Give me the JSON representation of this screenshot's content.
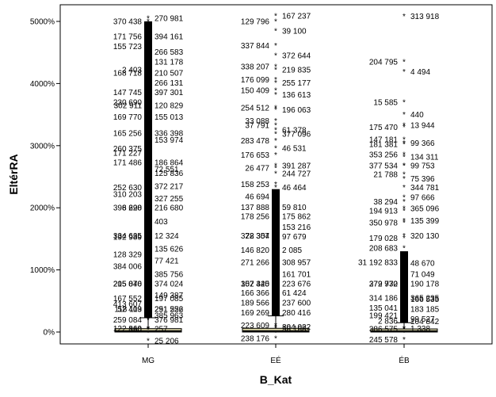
{
  "chart_data": {
    "type": "boxplot",
    "xlabel": "B_Kat",
    "ylabel": "EltérRA",
    "categories": [
      "MG",
      "EÉ",
      "ÉB"
    ],
    "y_unit": "%",
    "ylim": [
      -40,
      5150
    ],
    "yticks": [
      {
        "value": 0,
        "label": "0%"
      },
      {
        "value": 1000,
        "label": "1000%"
      },
      {
        "value": 2000,
        "label": "2000%"
      },
      {
        "value": 3000,
        "label": "3000%"
      },
      {
        "value": 4000,
        "label": "4000%"
      },
      {
        "value": 5000,
        "label": "5000%"
      }
    ],
    "grid": false,
    "colors": {
      "box_fill": "#d8d3a5",
      "dense": "#000000",
      "frame": "#000000"
    },
    "groups": [
      {
        "category": "MG",
        "box": {
          "q1": 0,
          "median": 15,
          "q3": 55,
          "whisker_low": -10,
          "whisker_high": 230
        },
        "dense_range": [
          230,
          5000
        ],
        "labeled_outliers": [
          {
            "label": "270 981",
            "value": 5050
          },
          {
            "label": "370 438",
            "value": 5000
          },
          {
            "label": "394 161",
            "value": 4760
          },
          {
            "label": "171 756",
            "value": 4760
          },
          {
            "label": "266 583",
            "value": 4510
          },
          {
            "label": "155 723",
            "value": 4600
          },
          {
            "label": "131 178",
            "value": 4350
          },
          {
            "label": "2 403",
            "value": 4220
          },
          {
            "label": "210 507",
            "value": 4170
          },
          {
            "label": "168 718",
            "value": 4170
          },
          {
            "label": "266 131",
            "value": 4010
          },
          {
            "label": "147 745",
            "value": 3860
          },
          {
            "label": "397 301",
            "value": 3860
          },
          {
            "label": "302 911",
            "value": 3650
          },
          {
            "label": "120 829",
            "value": 3650
          },
          {
            "label": "230 690",
            "value": 3700
          },
          {
            "label": "155 013",
            "value": 3460
          },
          {
            "label": "169 770",
            "value": 3460
          },
          {
            "label": "336 398",
            "value": 3200
          },
          {
            "label": "165 256",
            "value": 3200
          },
          {
            "label": "153 974",
            "value": 3090
          },
          {
            "label": "260 375",
            "value": 2950
          },
          {
            "label": "186 864",
            "value": 2730
          },
          {
            "label": "171 227",
            "value": 2880
          },
          {
            "label": "72 551",
            "value": 2620
          },
          {
            "label": "171 486",
            "value": 2730
          },
          {
            "label": "125 836",
            "value": 2560
          },
          {
            "label": "252 630",
            "value": 2330
          },
          {
            "label": "372 217",
            "value": 2350
          },
          {
            "label": "310 203",
            "value": 2220
          },
          {
            "label": "327 255",
            "value": 2150
          },
          {
            "label": "8 690",
            "value": 2000
          },
          {
            "label": "216 680",
            "value": 2000
          },
          {
            "label": "396 228",
            "value": 2000
          },
          {
            "label": "403",
            "value": 1780
          },
          {
            "label": "334 635",
            "value": 1550
          },
          {
            "label": "12 324",
            "value": 1550
          },
          {
            "label": "192 989",
            "value": 1530
          },
          {
            "label": "135 626",
            "value": 1340
          },
          {
            "label": "128 329",
            "value": 1250
          },
          {
            "label": "77 421",
            "value": 1150
          },
          {
            "label": "384 006",
            "value": 1060
          },
          {
            "label": "385 756",
            "value": 930
          },
          {
            "label": "215 076",
            "value": 780
          },
          {
            "label": "374 024",
            "value": 780
          },
          {
            "label": "205 840",
            "value": 780
          },
          {
            "label": "149 387",
            "value": 590
          },
          {
            "label": "167 552",
            "value": 540
          },
          {
            "label": "197 085",
            "value": 540
          },
          {
            "label": "413 607",
            "value": 450
          },
          {
            "label": "251 256",
            "value": 370
          },
          {
            "label": "118 119",
            "value": 370
          },
          {
            "label": "291 522",
            "value": 370
          },
          {
            "label": "52 403",
            "value": 370
          },
          {
            "label": "385 963",
            "value": 270
          },
          {
            "label": "259 084",
            "value": 200
          },
          {
            "label": "376 981",
            "value": 200
          },
          {
            "label": "122 860",
            "value": 60
          },
          {
            "label": "257",
            "value": 50
          },
          {
            "label": "380",
            "value": 40
          },
          {
            "label": "25 206",
            "value": -140
          }
        ]
      },
      {
        "category": "EÉ",
        "box": {
          "q1": 0,
          "median": 15,
          "q3": 60,
          "whisker_low": -10,
          "whisker_high": 260
        },
        "dense_range": [
          260,
          2300
        ],
        "labeled_outliers": [
          {
            "label": "167 237",
            "value": 5090
          },
          {
            "label": "129 796",
            "value": 5000
          },
          {
            "label": "39 100",
            "value": 4850
          },
          {
            "label": "337 844",
            "value": 4610
          },
          {
            "label": "372 644",
            "value": 4450
          },
          {
            "label": "338 207",
            "value": 4270
          },
          {
            "label": "219 835",
            "value": 4220
          },
          {
            "label": "176 099",
            "value": 4060
          },
          {
            "label": "255 177",
            "value": 4010
          },
          {
            "label": "150 409",
            "value": 3890
          },
          {
            "label": "136 613",
            "value": 3820
          },
          {
            "label": "254 512",
            "value": 3610
          },
          {
            "label": "196 063",
            "value": 3580
          },
          {
            "label": "33 088",
            "value": 3400
          },
          {
            "label": "61 378",
            "value": 3250
          },
          {
            "label": "37 791",
            "value": 3330
          },
          {
            "label": "377 096",
            "value": 3190
          },
          {
            "label": "283 478",
            "value": 3080
          },
          {
            "label": "46 531",
            "value": 2960
          },
          {
            "label": "176 653",
            "value": 2850
          },
          {
            "label": "391 287",
            "value": 2680
          },
          {
            "label": "26 477",
            "value": 2640
          },
          {
            "label": "244 727",
            "value": 2550
          },
          {
            "label": "158 253",
            "value": 2380
          },
          {
            "label": "46 464",
            "value": 2330
          },
          {
            "label": "46 694",
            "value": 2180
          },
          {
            "label": "59 810",
            "value": 2010
          },
          {
            "label": "137 888",
            "value": 2010
          },
          {
            "label": "175 862",
            "value": 1860
          },
          {
            "label": "178 256",
            "value": 1860
          },
          {
            "label": "153 216",
            "value": 1690
          },
          {
            "label": "78 354",
            "value": 1550
          },
          {
            "label": "97 679",
            "value": 1540
          },
          {
            "label": "322 307",
            "value": 1550
          },
          {
            "label": "2 085",
            "value": 1320
          },
          {
            "label": "146 820",
            "value": 1320
          },
          {
            "label": "308 957",
            "value": 1120
          },
          {
            "label": "271 266",
            "value": 1120
          },
          {
            "label": "161 701",
            "value": 930
          },
          {
            "label": "307 340",
            "value": 780
          },
          {
            "label": "223 676",
            "value": 780
          },
          {
            "label": "152 425",
            "value": 780
          },
          {
            "label": "61 424",
            "value": 630
          },
          {
            "label": "166 366",
            "value": 630
          },
          {
            "label": "237 600",
            "value": 470
          },
          {
            "label": "189 566",
            "value": 470
          },
          {
            "label": "280 416",
            "value": 310
          },
          {
            "label": "169 269",
            "value": 310
          },
          {
            "label": "58 168",
            "value": 60
          },
          {
            "label": "223 609",
            "value": 110
          },
          {
            "label": "304 022",
            "value": 80
          },
          {
            "label": "238 176",
            "value": -100
          }
        ]
      },
      {
        "category": "ÉB",
        "box": {
          "q1": 0,
          "median": 12,
          "q3": 50,
          "whisker_low": -10,
          "whisker_high": 150
        },
        "dense_range": [
          150,
          1300
        ],
        "labeled_outliers": [
          {
            "label": "313 918",
            "value": 5080
          },
          {
            "label": "204 795",
            "value": 4350
          },
          {
            "label": "4 494",
            "value": 4190
          },
          {
            "label": "15 585",
            "value": 3700
          },
          {
            "label": "440",
            "value": 3500
          },
          {
            "label": "175 470",
            "value": 3300
          },
          {
            "label": "13 944",
            "value": 3330
          },
          {
            "label": "147 181",
            "value": 3100
          },
          {
            "label": "99 366",
            "value": 3040
          },
          {
            "label": "181 381",
            "value": 3020
          },
          {
            "label": "134 311",
            "value": 2820
          },
          {
            "label": "353 256",
            "value": 2860
          },
          {
            "label": "99 753",
            "value": 2680
          },
          {
            "label": "377 534",
            "value": 2680
          },
          {
            "label": "75 396",
            "value": 2470
          },
          {
            "label": "21 788",
            "value": 2540
          },
          {
            "label": "344 781",
            "value": 2330
          },
          {
            "label": "38 294",
            "value": 2100
          },
          {
            "label": "97 666",
            "value": 2170
          },
          {
            "label": "194 913",
            "value": 1950
          },
          {
            "label": "365 096",
            "value": 1990
          },
          {
            "label": "350 978",
            "value": 1760
          },
          {
            "label": "135 399",
            "value": 1790
          },
          {
            "label": "179 028",
            "value": 1510
          },
          {
            "label": "320 130",
            "value": 1550
          },
          {
            "label": "208 683",
            "value": 1350
          },
          {
            "label": "48 670",
            "value": 1110
          },
          {
            "label": "31 192 833",
            "value": 1120
          },
          {
            "label": "71 049",
            "value": 930
          },
          {
            "label": "379 970",
            "value": 780
          },
          {
            "label": "190 178",
            "value": 780
          },
          {
            "label": "272 732",
            "value": 780
          },
          {
            "label": "365 235",
            "value": 550
          },
          {
            "label": "314 186",
            "value": 550
          },
          {
            "label": "166 535",
            "value": 530
          },
          {
            "label": "135 041",
            "value": 390
          },
          {
            "label": "183 185",
            "value": 370
          },
          {
            "label": "199 421",
            "value": 270
          },
          {
            "label": "99 527",
            "value": 210
          },
          {
            "label": "2 836",
            "value": 180
          },
          {
            "label": "104 842",
            "value": 170
          },
          {
            "label": "386 575",
            "value": 50
          },
          {
            "label": "1 338",
            "value": 60
          },
          {
            "label": "245 578",
            "value": -120
          }
        ]
      }
    ]
  }
}
